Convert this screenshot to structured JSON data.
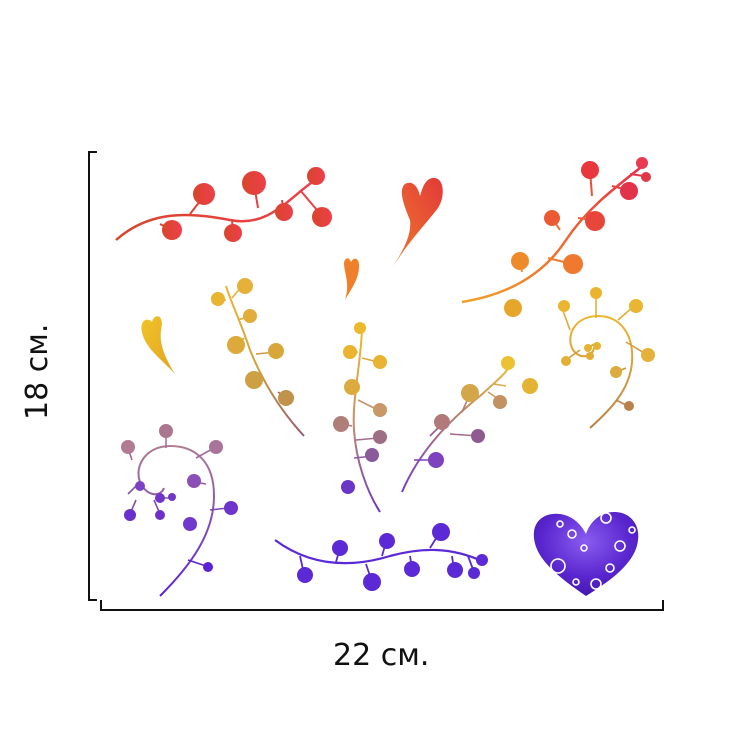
{
  "dimensions": {
    "width_label": "22 см.",
    "height_label": "18 см."
  },
  "colors": {
    "red": "#e8413b",
    "orange": "#ef7a2a",
    "yellow": "#e3b232",
    "mauve": "#a9657a",
    "purple": "#6a2bd6",
    "heart_purple": "#5b2ad0",
    "ruler": "#111111"
  },
  "decals": [
    {
      "name": "red-berry-branch-icon"
    },
    {
      "name": "red-leaf-heart-icon"
    },
    {
      "name": "small-orange-leaf-icon"
    },
    {
      "name": "red-orange-berry-branch-icon"
    },
    {
      "name": "yellow-heart-leaf-icon"
    },
    {
      "name": "yellow-berry-sprig-icon"
    },
    {
      "name": "center-berry-sprig-icon"
    },
    {
      "name": "gold-swirl-sprig-icon"
    },
    {
      "name": "diagonal-berry-sprig-icon"
    },
    {
      "name": "purple-swirl-sprig-icon"
    },
    {
      "name": "purple-berry-branch-icon"
    },
    {
      "name": "purple-polka-heart-icon"
    }
  ]
}
